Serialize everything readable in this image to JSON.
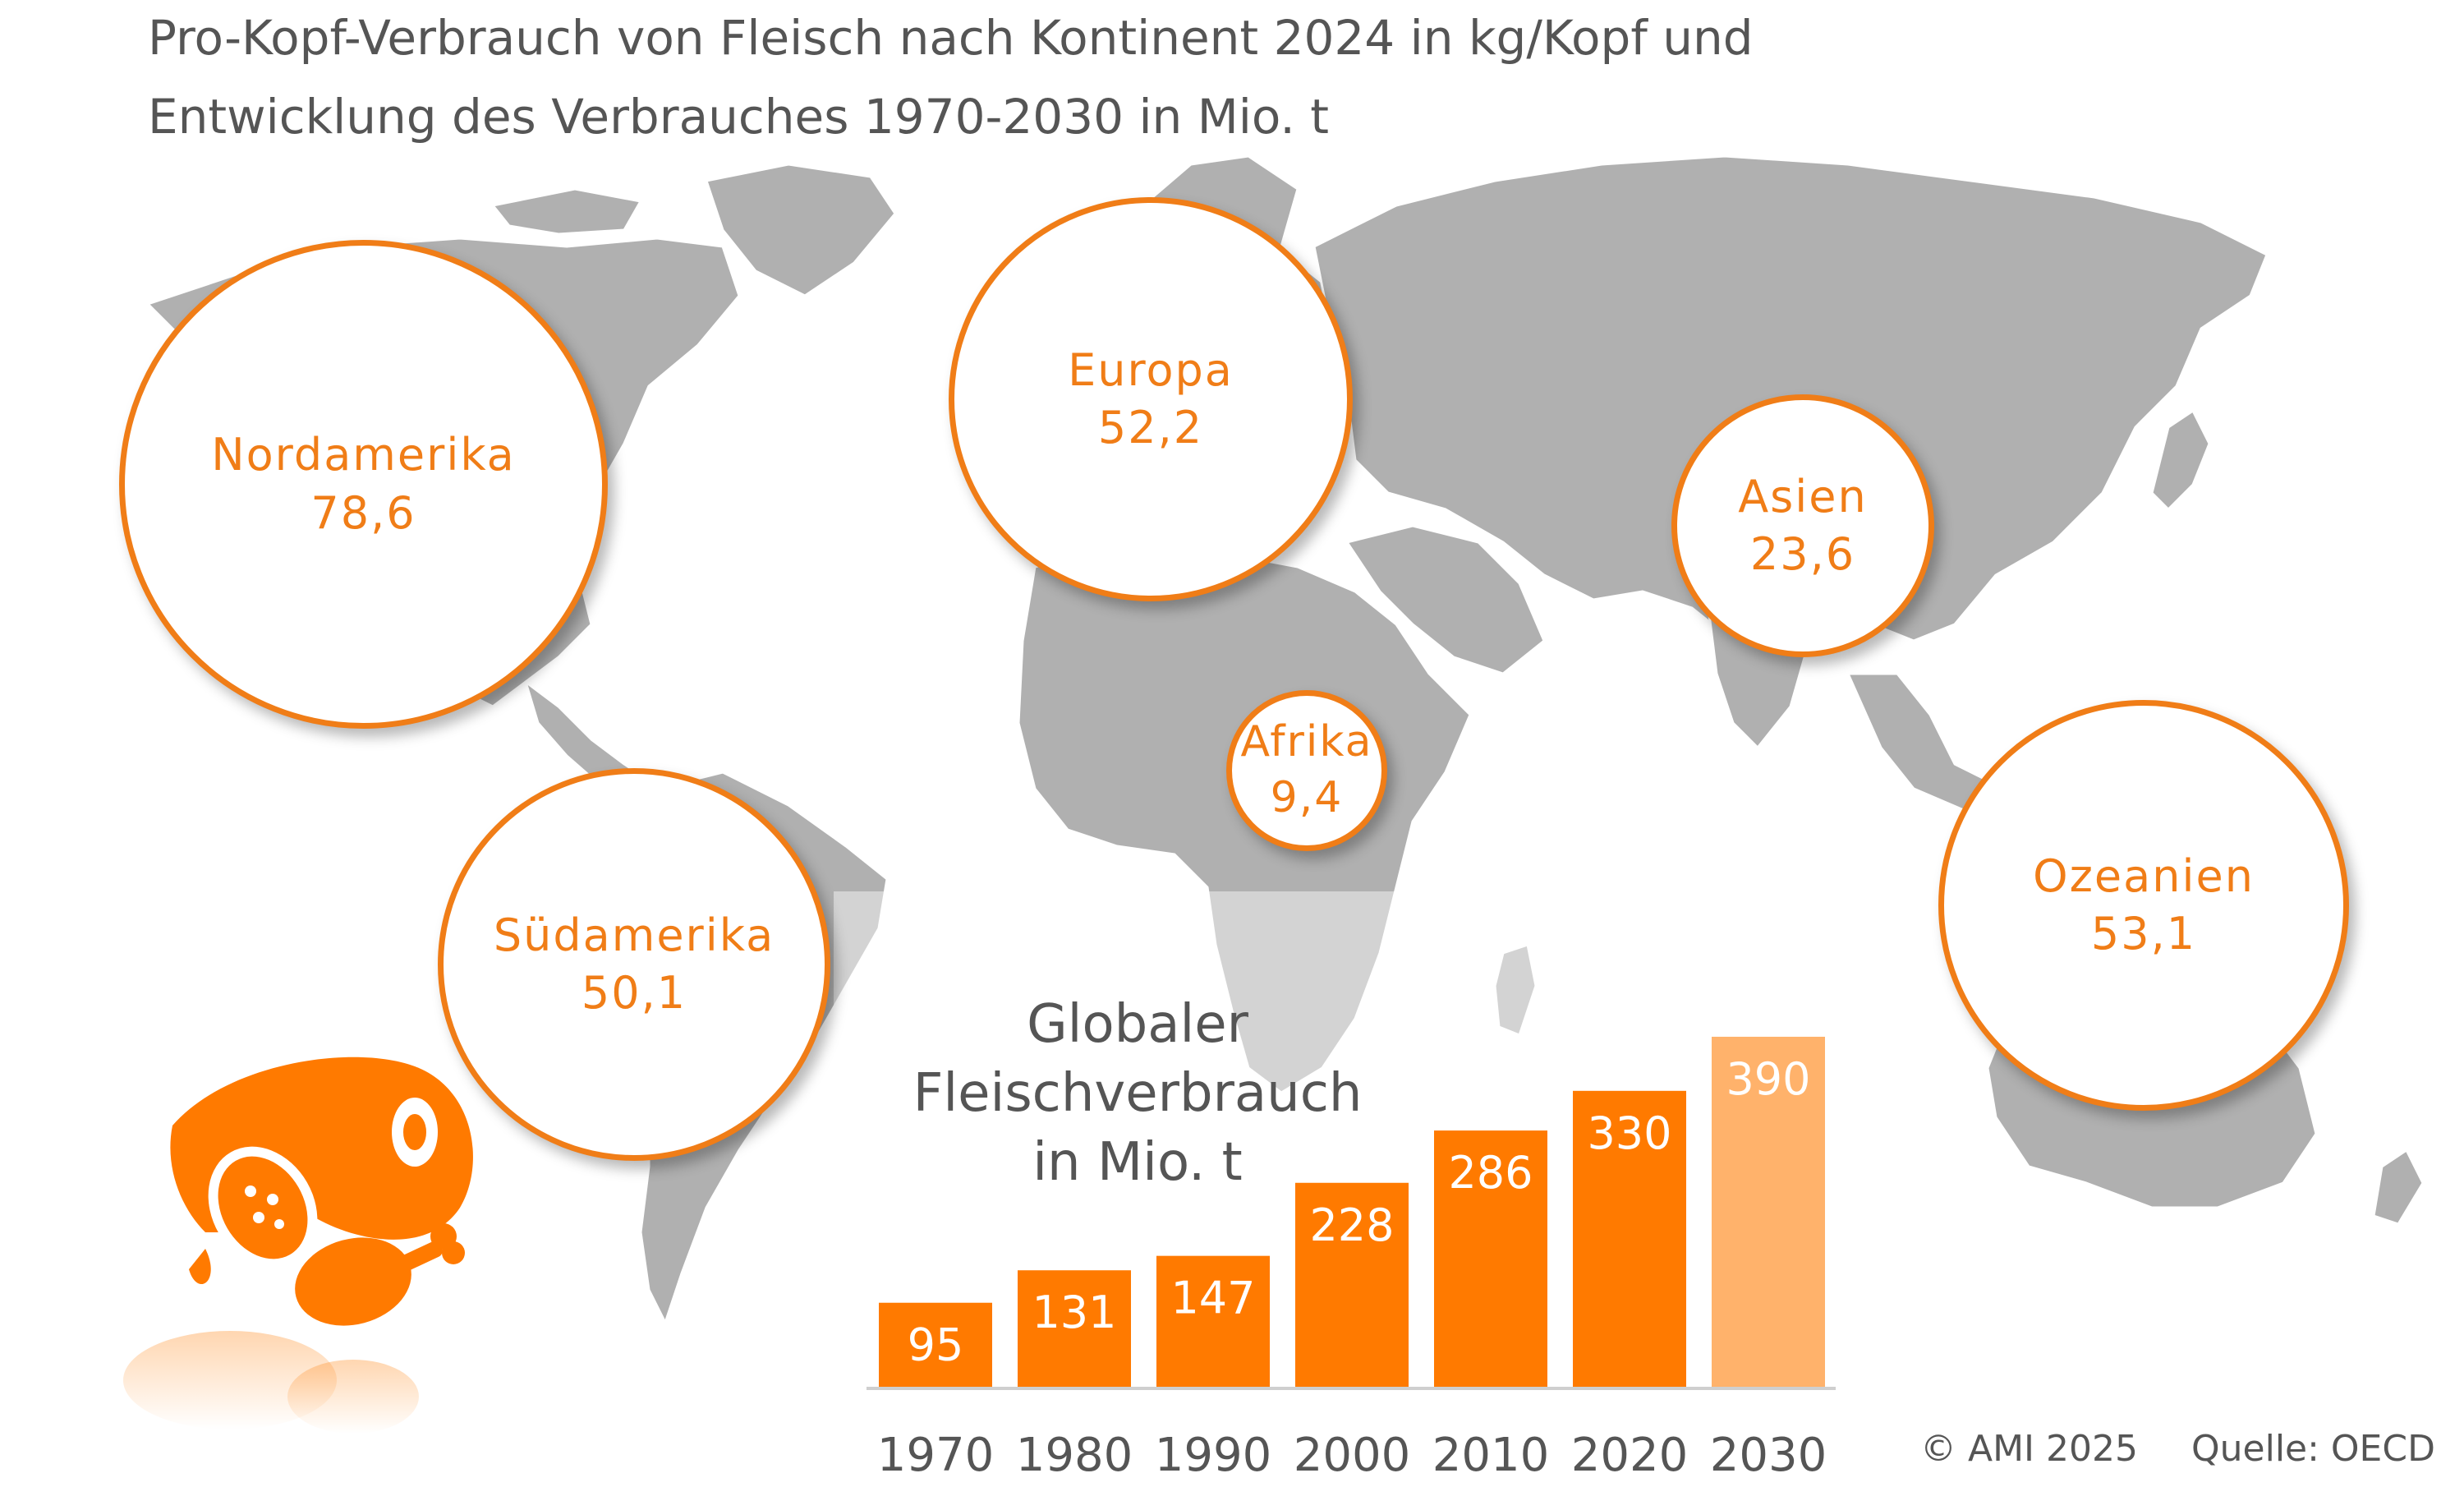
{
  "title": {
    "line1": "Pro-Kopf-Verbrauch von Fleisch nach Kontinent 2024 in kg/Kopf und",
    "line2": "Entwicklung des Verbrauches 1970-2030 in Mio. t"
  },
  "bubbles": [
    {
      "id": "nordamerika",
      "name": "Nordamerika",
      "value": "78,6"
    },
    {
      "id": "europa",
      "name": "Europa",
      "value": "52,2"
    },
    {
      "id": "asien",
      "name": "Asien",
      "value": "23,6"
    },
    {
      "id": "afrika",
      "name": "Afrika",
      "value": "9,4"
    },
    {
      "id": "suedamerika",
      "name": "Südamerika",
      "value": "50,1"
    },
    {
      "id": "ozeanien",
      "name": "Ozeanien",
      "value": "53,1"
    }
  ],
  "chart_title": {
    "line1": "Globaler",
    "line2": "Fleischverbrauch",
    "line3": "in Mio. t"
  },
  "chart_data": {
    "type": "bar",
    "title": "Globaler Fleischverbrauch in Mio. t",
    "xlabel": "",
    "ylabel": "",
    "categories": [
      "1970",
      "1980",
      "1990",
      "2000",
      "2010",
      "2020",
      "2030"
    ],
    "values": [
      95,
      131,
      147,
      228,
      286,
      330,
      390
    ],
    "ylim": [
      0,
      410
    ],
    "grid": false,
    "bar_color": "#ff7a00",
    "projection_color": "#ffb26b",
    "projection_categories": [
      "2030"
    ]
  },
  "footer": {
    "copyright": "© AMI 2025",
    "source": "Quelle: OECD"
  },
  "colors": {
    "accent": "#f07d17",
    "map": "#b0b0b0",
    "title_text": "#555555"
  },
  "icons": [
    "world-map",
    "meat-ham-icon",
    "sausage-icon",
    "chicken-leg-icon"
  ]
}
